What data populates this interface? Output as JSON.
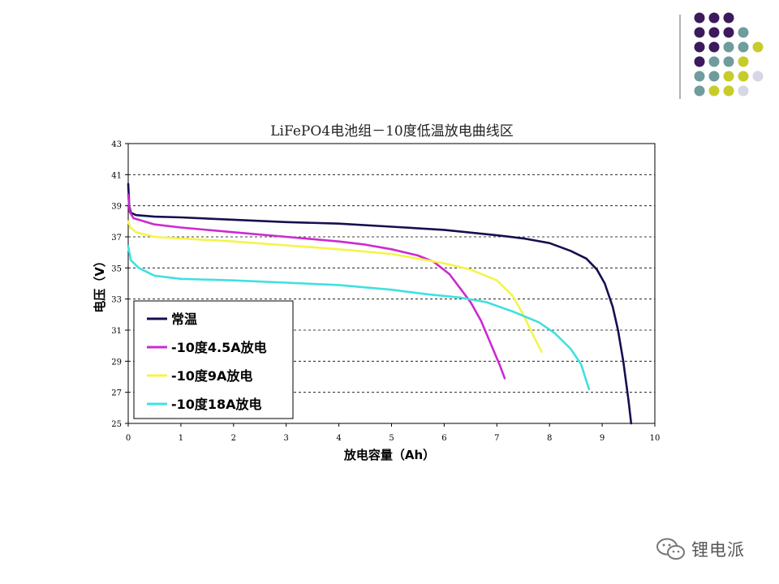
{
  "decoration": {
    "colors": {
      "purple": "#3c1a5b",
      "teal": "#6f9c9c",
      "yellow": "#c8cc2a",
      "lavender": "#d6d6e4",
      "divider": "#999999"
    }
  },
  "watermark": {
    "text": "锂电派",
    "icon": "wechat-icon"
  },
  "chart_data": {
    "type": "line",
    "title": "LiFePO4电池组－10度低温放电曲线区",
    "xlabel": "放电容量（Ah）",
    "ylabel": "电压（V）",
    "xlim": [
      0,
      10
    ],
    "ylim": [
      25,
      43
    ],
    "xticks": [
      "0",
      "1",
      "2",
      "3",
      "4",
      "5",
      "6",
      "7",
      "8",
      "9",
      "10"
    ],
    "yticks": [
      "25",
      "27",
      "29",
      "31",
      "33",
      "35",
      "37",
      "39",
      "41",
      "43"
    ],
    "grid": "horizontal-dashed",
    "legend_position": "bottom-left",
    "series": [
      {
        "name": "常温",
        "color": "#141050",
        "points": [
          [
            0,
            40.4
          ],
          [
            0.02,
            39.0
          ],
          [
            0.05,
            38.55
          ],
          [
            0.15,
            38.4
          ],
          [
            0.5,
            38.3
          ],
          [
            1,
            38.25
          ],
          [
            2,
            38.1
          ],
          [
            3,
            37.95
          ],
          [
            4,
            37.85
          ],
          [
            5,
            37.65
          ],
          [
            6,
            37.45
          ],
          [
            7,
            37.1
          ],
          [
            7.5,
            36.9
          ],
          [
            8,
            36.6
          ],
          [
            8.4,
            36.1
          ],
          [
            8.7,
            35.6
          ],
          [
            8.9,
            34.9
          ],
          [
            9.05,
            34.0
          ],
          [
            9.2,
            32.5
          ],
          [
            9.3,
            31.0
          ],
          [
            9.4,
            29.0
          ],
          [
            9.5,
            26.5
          ],
          [
            9.55,
            25.0
          ]
        ]
      },
      {
        "name": "-10度4.5A放电",
        "color": "#cc2ad0",
        "points": [
          [
            0,
            39.7
          ],
          [
            0.03,
            38.6
          ],
          [
            0.1,
            38.2
          ],
          [
            0.5,
            37.8
          ],
          [
            1,
            37.6
          ],
          [
            2,
            37.3
          ],
          [
            3,
            37.0
          ],
          [
            4,
            36.7
          ],
          [
            4.5,
            36.5
          ],
          [
            5,
            36.2
          ],
          [
            5.5,
            35.8
          ],
          [
            5.8,
            35.4
          ],
          [
            6.1,
            34.6
          ],
          [
            6.3,
            33.7
          ],
          [
            6.5,
            32.8
          ],
          [
            6.7,
            31.6
          ],
          [
            6.9,
            30.0
          ],
          [
            7.05,
            28.8
          ],
          [
            7.15,
            27.9
          ]
        ]
      },
      {
        "name": "-10度9A放电",
        "color": "#f4f44a",
        "points": [
          [
            0,
            38.0
          ],
          [
            0.04,
            37.6
          ],
          [
            0.15,
            37.3
          ],
          [
            0.5,
            37.0
          ],
          [
            1,
            36.9
          ],
          [
            2,
            36.7
          ],
          [
            3,
            36.45
          ],
          [
            4,
            36.2
          ],
          [
            5,
            35.9
          ],
          [
            6,
            35.3
          ],
          [
            6.5,
            34.9
          ],
          [
            7,
            34.2
          ],
          [
            7.3,
            33.2
          ],
          [
            7.5,
            32.0
          ],
          [
            7.7,
            30.6
          ],
          [
            7.85,
            29.6
          ]
        ]
      },
      {
        "name": "-10度18A放电",
        "color": "#40e0e0",
        "points": [
          [
            0,
            36.4
          ],
          [
            0.05,
            35.5
          ],
          [
            0.2,
            35.0
          ],
          [
            0.5,
            34.5
          ],
          [
            1,
            34.3
          ],
          [
            2,
            34.2
          ],
          [
            3,
            34.05
          ],
          [
            4,
            33.9
          ],
          [
            5,
            33.6
          ],
          [
            5.7,
            33.3
          ],
          [
            6.3,
            33.1
          ],
          [
            6.8,
            32.8
          ],
          [
            7.3,
            32.2
          ],
          [
            7.8,
            31.5
          ],
          [
            8.1,
            30.8
          ],
          [
            8.4,
            29.8
          ],
          [
            8.6,
            28.8
          ],
          [
            8.75,
            27.2
          ]
        ]
      }
    ]
  }
}
